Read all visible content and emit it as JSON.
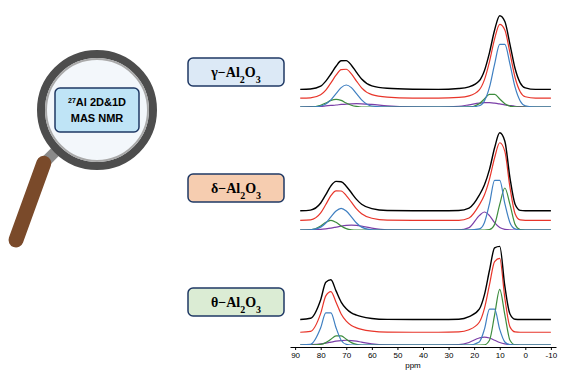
{
  "lens": {
    "lines": [
      "27Al 2D&1D",
      "MAS NMR"
    ]
  },
  "chart_data": [
    {
      "type": "line",
      "title": "γ−Al2O3",
      "x": [
        88,
        84,
        80,
        78,
        76,
        74,
        72,
        70,
        68,
        66,
        64,
        60,
        54,
        44,
        34,
        26,
        22,
        18,
        16,
        14,
        12,
        10,
        8,
        6,
        4,
        2,
        0,
        -4,
        -10
      ],
      "xlim": [
        92,
        -12
      ],
      "ylim": [
        0,
        9
      ],
      "tick_labels": false,
      "series": [
        {
          "color": "#000000",
          "values": [
            1.6,
            1.64,
            1.9,
            2.35,
            3.0,
            3.7,
            4.2,
            4.22,
            3.8,
            3.15,
            2.55,
            1.92,
            1.7,
            1.62,
            1.6,
            1.68,
            1.83,
            2.38,
            3.3,
            4.95,
            7.0,
            8.3,
            7.78,
            5.7,
            3.5,
            2.2,
            1.74,
            1.6,
            1.6
          ]
        },
        {
          "color": "#e8352a",
          "values": [
            0.8,
            0.83,
            1.11,
            1.53,
            2.19,
            2.89,
            3.39,
            3.43,
            3.01,
            2.36,
            1.74,
            1.12,
            0.9,
            0.81,
            0.8,
            0.87,
            1.01,
            1.56,
            2.47,
            4.13,
            6.19,
            7.51,
            7.0,
            4.91,
            2.68,
            1.39,
            0.93,
            0.8,
            0.8
          ]
        },
        {
          "color": "#3f7fc1",
          "values": [
            0,
            0,
            0.09,
            0.27,
            0.65,
            1.21,
            1.76,
            2.0,
            1.76,
            1.21,
            0.65,
            0.09,
            0,
            0,
            0,
            0,
            0,
            0.11,
            0.55,
            1.8,
            3.9,
            5.7,
            5.7,
            3.9,
            1.8,
            0.55,
            0.11,
            0,
            0
          ]
        },
        {
          "color": "#3d8c3d",
          "values": [
            0,
            0,
            0.16,
            0.36,
            0.6,
            0.7,
            0.6,
            0.36,
            0.16,
            0.05,
            0,
            0,
            0,
            0,
            0,
            0,
            0.01,
            0.3,
            0.73,
            1.14,
            1.14,
            0.73,
            0.3,
            0.08,
            0.01,
            0,
            0,
            0,
            0
          ]
        },
        {
          "color": "#7b3fa8",
          "values": [
            0,
            0.03,
            0.06,
            0.1,
            0.14,
            0.18,
            0.23,
            0.27,
            0.29,
            0.3,
            0.29,
            0.23,
            0.1,
            0.01,
            0,
            0.07,
            0.2,
            0.35,
            0.39,
            0.39,
            0.35,
            0.28,
            0.2,
            0.13,
            0.07,
            0.04,
            0.02,
            0,
            0
          ]
        }
      ]
    },
    {
      "type": "line",
      "title": "δ−Al2O3",
      "x": [
        88,
        84,
        80,
        78,
        76,
        74,
        72,
        70,
        68,
        66,
        64,
        60,
        54,
        44,
        34,
        26,
        22,
        18,
        16,
        14,
        12,
        10,
        8,
        6,
        4,
        2,
        0,
        -4,
        -10
      ],
      "xlim": [
        92,
        -12
      ],
      "ylim": [
        0,
        9
      ],
      "tick_labels": false,
      "series": [
        {
          "color": "#000000",
          "values": [
            1.6,
            1.66,
            2.25,
            2.95,
            3.68,
            4.05,
            4.02,
            3.65,
            3.1,
            2.55,
            2.15,
            1.78,
            1.62,
            1.6,
            1.6,
            1.62,
            1.82,
            2.9,
            3.75,
            5.05,
            6.85,
            8.1,
            7.4,
            4.35,
            2.15,
            1.64,
            1.6,
            1.6,
            1.6
          ]
        },
        {
          "color": "#e8352a",
          "values": [
            0.8,
            0.85,
            1.42,
            2.12,
            2.86,
            3.26,
            3.25,
            2.87,
            2.32,
            1.76,
            1.36,
            0.98,
            0.82,
            0.8,
            0.8,
            0.81,
            1.0,
            2.09,
            2.91,
            4.24,
            6.02,
            7.27,
            6.55,
            3.55,
            1.36,
            0.84,
            0.8,
            0.8,
            0.8
          ]
        },
        {
          "color": "#3f7fc1",
          "values": [
            0,
            0.02,
            0.24,
            0.58,
            1.1,
            1.58,
            1.8,
            1.58,
            1.1,
            0.58,
            0.24,
            0.02,
            0,
            0,
            0,
            0,
            0,
            0.09,
            0.61,
            2.2,
            4.14,
            4.14,
            2.2,
            0.61,
            0.09,
            0,
            0,
            0,
            0
          ]
        },
        {
          "color": "#3d8c3d",
          "values": [
            0,
            0.02,
            0.33,
            0.64,
            0.8,
            0.64,
            0.33,
            0.11,
            0.02,
            0,
            0,
            0,
            0,
            0,
            0,
            0,
            0,
            0,
            0,
            0.04,
            0.47,
            2.13,
            3.5,
            2.13,
            0.47,
            0.04,
            0,
            0,
            0
          ]
        },
        {
          "color": "#7b3fa8",
          "values": [
            0,
            0.01,
            0.05,
            0.1,
            0.16,
            0.24,
            0.32,
            0.38,
            0.4,
            0.38,
            0.32,
            0.16,
            0.02,
            0,
            0,
            0.01,
            0.2,
            1.2,
            1.5,
            1.2,
            0.61,
            0.2,
            0.05,
            0.01,
            0,
            0,
            0,
            0,
            0
          ]
        }
      ]
    },
    {
      "type": "line",
      "title": "θ−Al2O3",
      "x": [
        88,
        84,
        80,
        78,
        76,
        74,
        72,
        70,
        68,
        66,
        64,
        60,
        54,
        44,
        34,
        26,
        22,
        18,
        16,
        14,
        12,
        10,
        8,
        6,
        4,
        2,
        0,
        -4,
        -10
      ],
      "xlim": [
        92,
        -12
      ],
      "ylim": [
        0,
        6.6
      ],
      "xticks": [
        90,
        80,
        70,
        60,
        50,
        40,
        30,
        20,
        10,
        0,
        -10
      ],
      "xlabel": "ppm",
      "tick_labels": "x",
      "series": [
        {
          "color": "#000000",
          "values": [
            1.6,
            1.68,
            2.85,
            3.95,
            4.1,
            3.4,
            2.7,
            2.28,
            2.02,
            1.88,
            1.78,
            1.67,
            1.61,
            1.6,
            1.6,
            1.62,
            1.78,
            2.25,
            3.15,
            4.7,
            6.1,
            6.2,
            3.7,
            1.95,
            1.62,
            1.6,
            1.6,
            1.6,
            1.6
          ]
        },
        {
          "color": "#e8352a",
          "values": [
            0.8,
            0.86,
            1.99,
            3.09,
            3.36,
            2.69,
            1.95,
            1.5,
            1.23,
            1.08,
            0.98,
            0.87,
            0.81,
            0.8,
            0.8,
            0.82,
            0.96,
            1.43,
            2.29,
            3.79,
            5.24,
            5.44,
            2.95,
            1.14,
            0.82,
            0.8,
            0.8,
            0.8,
            0.8
          ]
        },
        {
          "color": "#3f7fc1",
          "values": [
            0,
            0.04,
            1.08,
            2.02,
            2.02,
            1.08,
            0.3,
            0.04,
            0,
            0,
            0,
            0,
            0,
            0,
            0,
            0,
            0,
            0.19,
            0.98,
            2.25,
            2.25,
            0.98,
            0.19,
            0.02,
            0,
            0,
            0,
            0,
            0
          ]
        },
        {
          "color": "#3d8c3d",
          "values": [
            0,
            0,
            0.04,
            0.15,
            0.36,
            0.57,
            0.57,
            0.36,
            0.15,
            0.04,
            0,
            0,
            0,
            0,
            0,
            0,
            0,
            0,
            0.01,
            0.3,
            1.89,
            3.5,
            1.89,
            0.3,
            0.01,
            0,
            0,
            0,
            0
          ]
        },
        {
          "color": "#7b3fa8",
          "values": [
            0,
            0.02,
            0.07,
            0.12,
            0.18,
            0.24,
            0.28,
            0.3,
            0.28,
            0.24,
            0.18,
            0.07,
            0.01,
            0,
            0,
            0.02,
            0.16,
            0.44,
            0.5,
            0.44,
            0.3,
            0.16,
            0.07,
            0.02,
            0.01,
            0,
            0,
            0,
            0
          ]
        }
      ]
    }
  ]
}
